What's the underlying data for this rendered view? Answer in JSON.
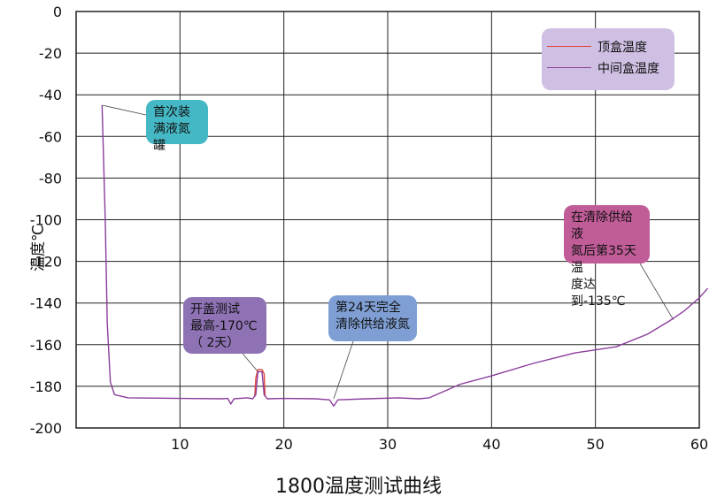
{
  "chart_data": {
    "type": "line",
    "title": "1800温度测试曲线",
    "xlabel": "",
    "ylabel": "温度℃",
    "xlim": [
      0,
      60
    ],
    "ylim": [
      -200,
      0
    ],
    "x_ticks": [
      "10",
      "20",
      "30",
      "40",
      "50",
      "60"
    ],
    "y_ticks": [
      "0",
      "-20",
      "-40",
      "-60",
      "-80",
      "-100",
      "-120",
      "-140",
      "-160",
      "-180",
      "-200"
    ],
    "grid": true,
    "legend_position": "top-right",
    "series": [
      {
        "name": "顶盒温度",
        "color": "#e0443a",
        "points": [
          [
            17.2,
            -185
          ],
          [
            17.3,
            -176
          ],
          [
            17.5,
            -172
          ],
          [
            17.9,
            -172
          ],
          [
            18.1,
            -174
          ],
          [
            18.2,
            -185
          ]
        ]
      },
      {
        "name": "中间盒温度",
        "color": "#8a3d9a",
        "points": [
          [
            2.5,
            -45
          ],
          [
            2.8,
            -100
          ],
          [
            3.0,
            -150
          ],
          [
            3.3,
            -178
          ],
          [
            3.7,
            -184
          ],
          [
            5,
            -185.5
          ],
          [
            10,
            -185.8
          ],
          [
            14,
            -186
          ],
          [
            14.6,
            -185.8
          ],
          [
            14.9,
            -188.5
          ],
          [
            15.2,
            -186
          ],
          [
            16.5,
            -185.5
          ],
          [
            17.0,
            -186
          ],
          [
            17.3,
            -184
          ],
          [
            17.5,
            -173
          ],
          [
            17.9,
            -173
          ],
          [
            18.1,
            -184
          ],
          [
            18.4,
            -186
          ],
          [
            20,
            -185.8
          ],
          [
            23,
            -186
          ],
          [
            24.4,
            -186.5
          ],
          [
            24.8,
            -189.5
          ],
          [
            25.2,
            -186.5
          ],
          [
            28,
            -186
          ],
          [
            31,
            -185.5
          ],
          [
            33,
            -186
          ],
          [
            34,
            -185.5
          ],
          [
            37,
            -179
          ],
          [
            40,
            -175
          ],
          [
            44,
            -169
          ],
          [
            48,
            -164
          ],
          [
            52,
            -161
          ],
          [
            55,
            -155
          ],
          [
            57,
            -149
          ],
          [
            58.5,
            -144
          ],
          [
            60,
            -137.5
          ],
          [
            60.8,
            -133
          ]
        ]
      }
    ],
    "annotations": [
      {
        "text": "首次装\n满液氮罐",
        "bg": "#45b8c5"
      },
      {
        "text": "开盖测试\n最高-170℃\n（ 2天）",
        "bg": "#8e72b4"
      },
      {
        "text": "第24天完全\n清除供给液氮",
        "bg": "#7f9fd4"
      },
      {
        "text": "在清除供给液\n氮后第35天温\n度达到-135℃",
        "bg": "#c05c98"
      }
    ]
  }
}
